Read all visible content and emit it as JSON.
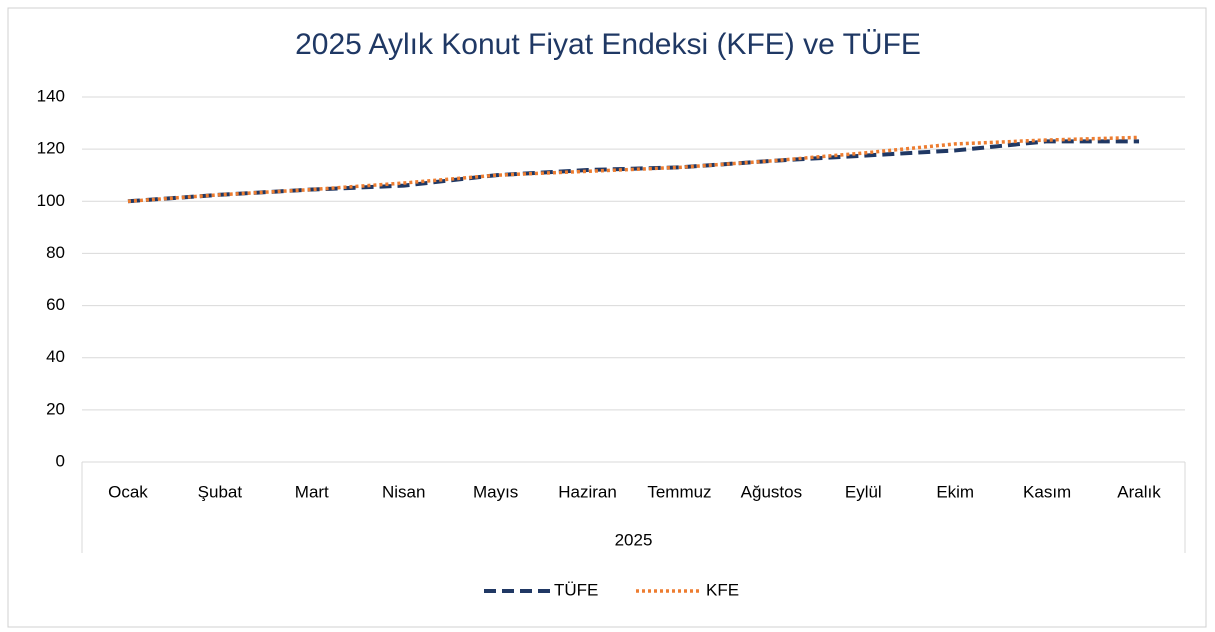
{
  "chart_data": {
    "type": "line",
    "title": "2025 Aylık Konut Fiyat Endeksi (KFE) ve TÜFE",
    "categories": [
      "Ocak",
      "Şubat",
      "Mart",
      "Nisan",
      "Mayıs",
      "Haziran",
      "Temmuz",
      "Ağustos",
      "Eylül",
      "Ekim",
      "Kasım",
      "Aralık"
    ],
    "x_group_label": "2025",
    "series": [
      {
        "name": "TÜFE",
        "color": "#203864",
        "dash": "dash",
        "values": [
          100,
          102.5,
          104.5,
          106,
          110,
          112,
          113,
          115.5,
          117.5,
          119.5,
          123,
          123
        ]
      },
      {
        "name": "KFE",
        "color": "#ed7d31",
        "dash": "dot",
        "values": [
          100,
          102.5,
          104.5,
          107,
          110,
          111.5,
          113,
          115.5,
          118.5,
          122,
          123.5,
          124.5
        ]
      }
    ],
    "ylim": [
      0,
      140
    ],
    "yticks": [
      0,
      20,
      40,
      60,
      80,
      100,
      120,
      140
    ],
    "grid": true,
    "legend": "bottom"
  }
}
